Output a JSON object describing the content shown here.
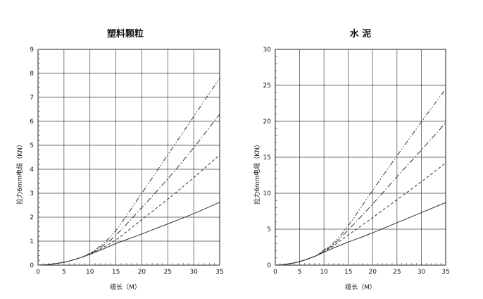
{
  "chart_data": [
    {
      "type": "line",
      "title": "塑料颗粒",
      "xlabel": "缆长（M）",
      "ylabel": "拉力6mm电缆（KN）",
      "xlim": [
        0,
        35
      ],
      "ylim": [
        0,
        9
      ],
      "xticks": [
        0,
        5,
        10,
        15,
        20,
        25,
        30,
        35
      ],
      "yticks": [
        0,
        1,
        2,
        3,
        4,
        5,
        6,
        7,
        8,
        9
      ],
      "grid": true,
      "series": [
        {
          "style": "solid",
          "x": [
            0,
            2,
            5,
            8,
            10,
            12,
            15,
            20,
            25,
            30,
            35
          ],
          "y": [
            0,
            0.03,
            0.12,
            0.3,
            0.45,
            0.62,
            0.9,
            1.3,
            1.72,
            2.15,
            2.62
          ]
        },
        {
          "style": "dashed",
          "x": [
            0,
            2,
            5,
            8,
            10,
            12,
            15,
            20,
            25,
            30,
            35
          ],
          "y": [
            0,
            0.03,
            0.12,
            0.3,
            0.47,
            0.68,
            1.05,
            1.9,
            2.75,
            3.65,
            4.6
          ]
        },
        {
          "style": "dashdot",
          "x": [
            0,
            2,
            5,
            8,
            10,
            12,
            15,
            20,
            25,
            30,
            35
          ],
          "y": [
            0,
            0.03,
            0.12,
            0.3,
            0.48,
            0.73,
            1.25,
            2.4,
            3.6,
            4.9,
            6.3
          ]
        },
        {
          "style": "dashdotdot",
          "x": [
            0,
            2,
            5,
            8,
            10,
            12,
            15,
            20,
            25,
            30,
            35
          ],
          "y": [
            0,
            0.03,
            0.12,
            0.3,
            0.5,
            0.8,
            1.45,
            3.0,
            4.6,
            6.2,
            7.8
          ]
        }
      ]
    },
    {
      "type": "line",
      "title": "水 泥",
      "xlabel": "缆长（M）",
      "ylabel": "拉力6mm电缆（KN）",
      "xlim": [
        0,
        35
      ],
      "ylim": [
        0,
        30
      ],
      "xticks": [
        0,
        5,
        10,
        15,
        20,
        25,
        30,
        35
      ],
      "yticks": [
        0,
        5,
        10,
        15,
        20,
        25,
        30
      ],
      "grid": true,
      "series": [
        {
          "style": "solid",
          "x": [
            0,
            2,
            5,
            8,
            10,
            12,
            15,
            20,
            25,
            30,
            35
          ],
          "y": [
            0,
            0.1,
            0.5,
            1.2,
            1.8,
            2.4,
            3.2,
            4.5,
            5.9,
            7.3,
            8.7
          ]
        },
        {
          "style": "dashed",
          "x": [
            0,
            2,
            5,
            8,
            10,
            12,
            15,
            20,
            25,
            30,
            35
          ],
          "y": [
            0,
            0.1,
            0.5,
            1.2,
            1.9,
            2.7,
            4.2,
            6.6,
            9.1,
            11.6,
            14.2
          ]
        },
        {
          "style": "dashdot",
          "x": [
            0,
            2,
            5,
            8,
            10,
            12,
            15,
            20,
            25,
            30,
            35
          ],
          "y": [
            0,
            0.1,
            0.5,
            1.2,
            2.0,
            2.9,
            4.9,
            8.5,
            12.3,
            16.0,
            19.8
          ]
        },
        {
          "style": "dashdotdot",
          "x": [
            0,
            2,
            5,
            8,
            10,
            12,
            15,
            20,
            25,
            30,
            35
          ],
          "y": [
            0,
            0.1,
            0.5,
            1.2,
            2.1,
            3.1,
            5.5,
            10.4,
            15.2,
            19.9,
            24.5
          ]
        }
      ]
    }
  ]
}
